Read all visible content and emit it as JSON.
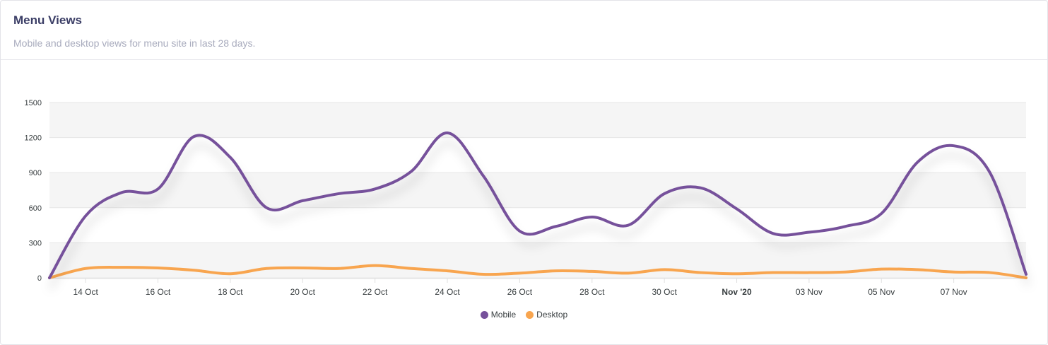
{
  "header": {
    "title": "Menu Views",
    "subtitle": "Mobile and desktop views for menu site in last 28 days."
  },
  "colors": {
    "mobile": "#76519b",
    "desktop": "#f8a54f",
    "band": "#f5f5f5",
    "grid": "#e6e6e6",
    "axis_text": "#373d3f"
  },
  "chart_data": {
    "type": "line",
    "curve": "smooth",
    "grid": true,
    "legend_position": "bottom-center",
    "x_start": "13 Oct",
    "x_end": "9 Nov",
    "x_tick_labels": [
      "14 Oct",
      "16 Oct",
      "18 Oct",
      "20 Oct",
      "22 Oct",
      "24 Oct",
      "26 Oct",
      "28 Oct",
      "30 Oct",
      "Nov '20",
      "03 Nov",
      "05 Nov",
      "07 Nov"
    ],
    "x_tick_bold": [
      "Nov '20"
    ],
    "y_ticks": [
      0,
      300,
      600,
      900,
      1200,
      1500
    ],
    "ylim": [
      0,
      1500
    ],
    "x": [
      "13 Oct",
      "14 Oct",
      "15 Oct",
      "16 Oct",
      "17 Oct",
      "18 Oct",
      "19 Oct",
      "20 Oct",
      "21 Oct",
      "22 Oct",
      "23 Oct",
      "24 Oct",
      "25 Oct",
      "26 Oct",
      "27 Oct",
      "28 Oct",
      "29 Oct",
      "30 Oct",
      "31 Oct",
      "01 Nov",
      "02 Nov",
      "03 Nov",
      "04 Nov",
      "05 Nov",
      "06 Nov",
      "07 Nov",
      "08 Nov",
      "09 Nov"
    ],
    "series": [
      {
        "name": "Mobile",
        "values": [
          0,
          530,
          730,
          760,
          1210,
          1030,
          600,
          660,
          720,
          760,
          910,
          1240,
          870,
          400,
          440,
          520,
          450,
          720,
          770,
          590,
          380,
          390,
          440,
          550,
          990,
          1130,
          900,
          30
        ]
      },
      {
        "name": "Desktop",
        "values": [
          0,
          80,
          90,
          85,
          65,
          35,
          80,
          85,
          80,
          105,
          80,
          60,
          30,
          40,
          60,
          55,
          40,
          70,
          45,
          35,
          45,
          45,
          50,
          75,
          70,
          50,
          45,
          0
        ]
      }
    ]
  }
}
